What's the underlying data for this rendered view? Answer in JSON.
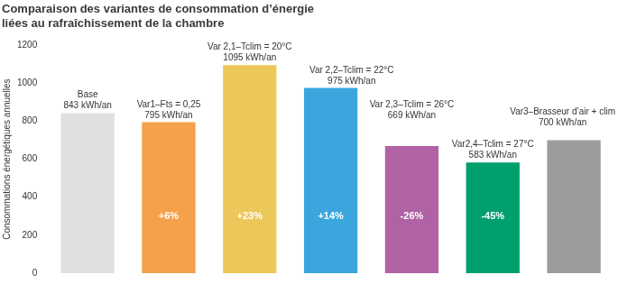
{
  "chart_data": {
    "type": "bar",
    "title": [
      "Comparaison des variantes de consommation d’énergie",
      "liées au rafraîchissement de la chambre"
    ],
    "y_label": "Consommations énergétiques annuelles",
    "categories": [
      "Base",
      "Var1–Fts = 0,25",
      "Var 2,1–Tclim = 20°C",
      "Var 2,2–Tclim = 22°C",
      "Var 2,3–Tclim = 26°C",
      "Var2,4–Tclim = 27°C",
      "Var3–Brasseur d’air + clim"
    ],
    "values": [
      843,
      795,
      1095,
      975,
      669,
      583,
      700
    ],
    "value_labels": [
      "843 kWh/an",
      "795 kWh/an",
      "1095 kWh/an",
      "975 kWh/an",
      "669 kWh/an",
      "583 kWh/an",
      "700 kWh/an"
    ],
    "variations": [
      null,
      6,
      23,
      14,
      -26,
      -45,
      null
    ],
    "variation_labels": [
      null,
      "+6%",
      "+23%",
      "+14%",
      "-26%",
      "-45%",
      null
    ],
    "colors": [
      "#e0e0e0",
      "#f5a04b",
      "#ecc75a",
      "#3aa6dd",
      "#b062a4",
      "#00a06e",
      "#9b9b9b"
    ],
    "ylim": [
      0,
      1200
    ],
    "yticks": [
      0,
      200,
      400,
      600,
      800,
      1000,
      1200
    ],
    "grid": false,
    "data_labels": true,
    "tick_labels": "y"
  }
}
